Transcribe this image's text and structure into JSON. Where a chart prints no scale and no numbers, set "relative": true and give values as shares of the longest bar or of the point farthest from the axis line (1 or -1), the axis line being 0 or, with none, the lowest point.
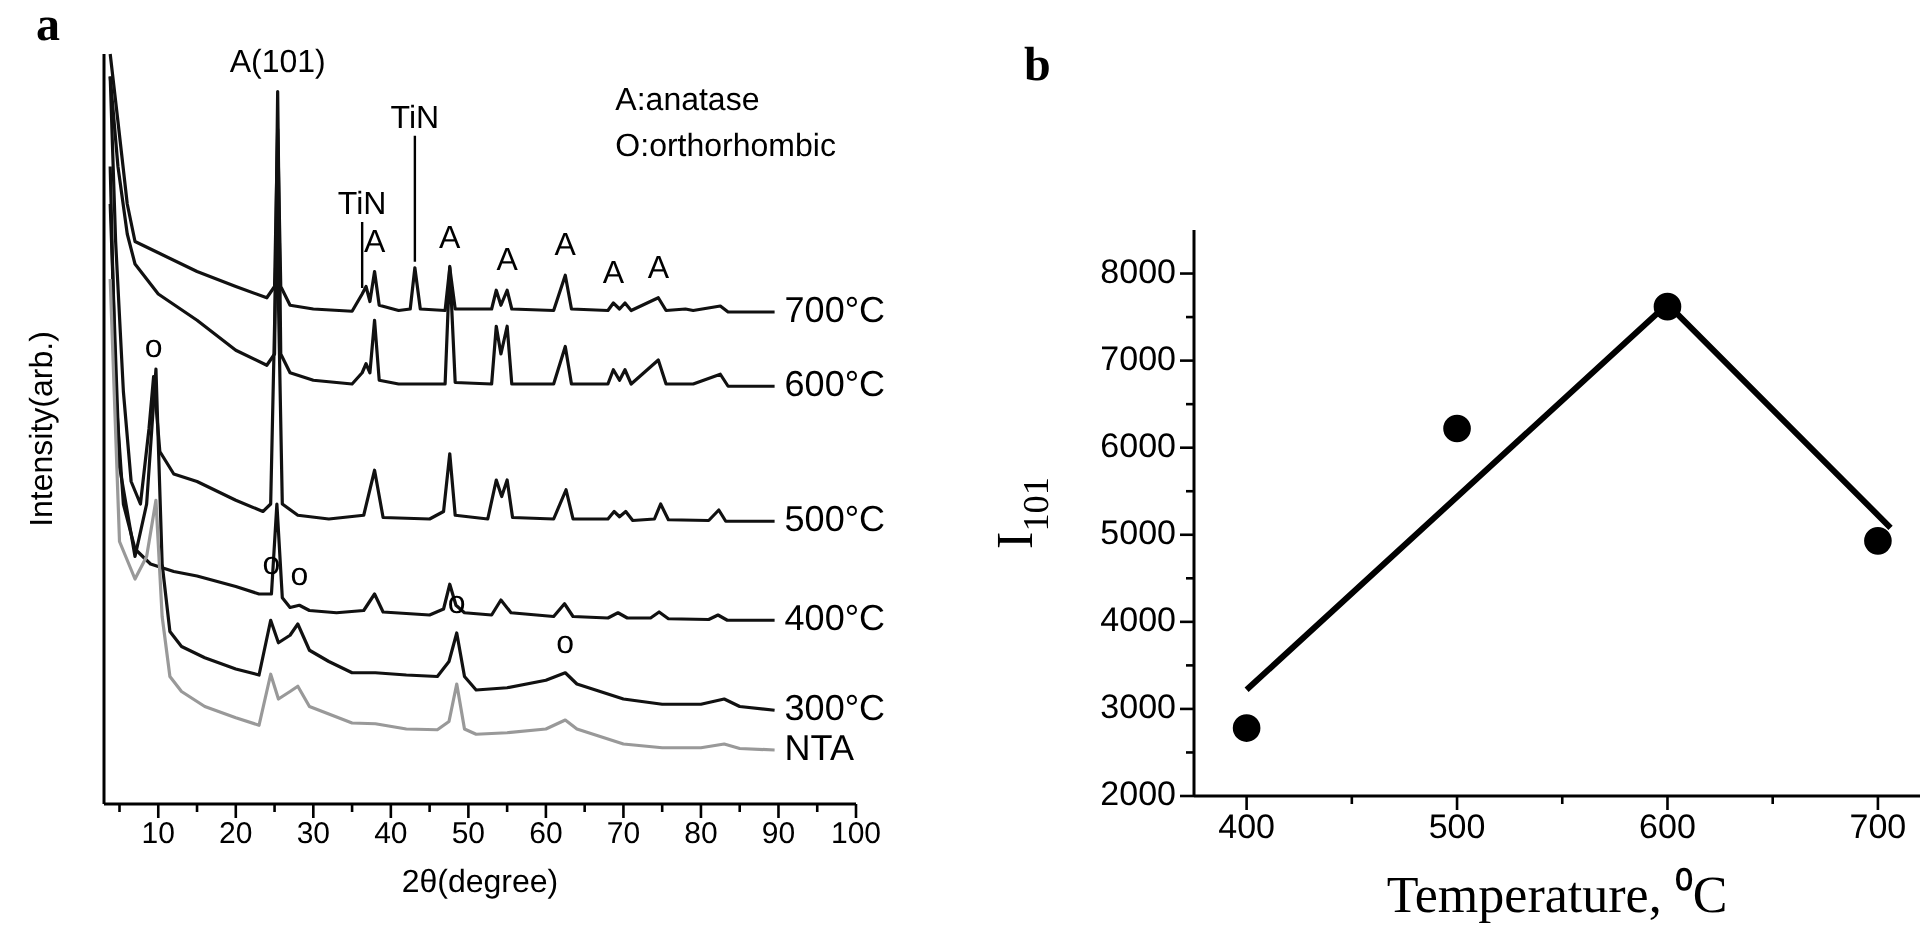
{
  "chart_data": [
    {
      "type": "line",
      "title": "a",
      "xlabel": "2θ(degree)",
      "ylabel": "Intensity(arb.)",
      "relative": true,
      "tick_labels": "x",
      "xlim": [
        3,
        100
      ],
      "xticks": [
        {
          "value": 5,
          "label": null
        },
        10,
        {
          "value": 15,
          "label": null
        },
        20,
        {
          "value": 25,
          "label": null
        },
        30,
        {
          "value": 35,
          "label": null
        },
        40,
        {
          "value": 45,
          "label": null
        },
        50,
        {
          "value": 55,
          "label": null
        },
        60,
        {
          "value": 65,
          "label": null
        },
        70,
        {
          "value": 75,
          "label": null
        },
        80,
        {
          "value": 85,
          "label": null
        },
        90,
        {
          "value": 95,
          "label": null
        },
        100
      ],
      "series": [
        {
          "name": "700°C",
          "color": "#111111",
          "x": [
            3.8,
            4.8,
            6,
            7,
            10,
            15,
            20,
            24,
            25,
            25.4,
            25.8,
            27,
            30,
            35,
            36.3,
            36.8,
            37.3,
            37.9,
            38.5,
            41,
            42.5,
            43.1,
            43.8,
            47,
            47.6,
            48.3,
            53,
            53.6,
            54.2,
            55,
            55.6,
            61,
            62.5,
            63.3,
            68,
            68.7,
            69.5,
            70.2,
            71,
            74.5,
            75.5,
            78,
            79,
            82.5,
            83.5,
            89.5
          ],
          "values": [
            1.0,
            0.91,
            0.8,
            0.75,
            0.735,
            0.71,
            0.69,
            0.675,
            0.69,
            0.9,
            0.69,
            0.665,
            0.66,
            0.657,
            0.68,
            0.69,
            0.67,
            0.71,
            0.665,
            0.658,
            0.66,
            0.715,
            0.66,
            0.658,
            0.715,
            0.66,
            0.66,
            0.685,
            0.665,
            0.685,
            0.66,
            0.658,
            0.705,
            0.66,
            0.658,
            0.668,
            0.66,
            0.668,
            0.658,
            0.675,
            0.658,
            0.66,
            0.658,
            0.664,
            0.656,
            0.656
          ]
        },
        {
          "name": "600°C",
          "color": "#111111",
          "x": [
            3.8,
            4.8,
            6,
            7,
            10,
            15,
            20,
            24,
            25,
            25.4,
            25.8,
            27,
            30,
            35,
            36.3,
            36.8,
            37.3,
            37.9,
            38.5,
            41,
            42.5,
            43.1,
            43.8,
            47,
            47.6,
            48.3,
            53,
            53.6,
            54.2,
            55,
            55.6,
            61,
            62.5,
            63.3,
            68,
            68.7,
            69.5,
            70.2,
            71,
            74.5,
            75.5,
            78,
            79,
            82.5,
            83.5,
            89.5
          ],
          "values": [
            0.97,
            0.85,
            0.76,
            0.72,
            0.68,
            0.645,
            0.605,
            0.585,
            0.6,
            0.95,
            0.6,
            0.575,
            0.565,
            0.56,
            0.575,
            0.587,
            0.575,
            0.645,
            0.565,
            0.56,
            0.56,
            0.56,
            0.56,
            0.56,
            0.717,
            0.562,
            0.56,
            0.637,
            0.6,
            0.637,
            0.56,
            0.56,
            0.61,
            0.56,
            0.56,
            0.579,
            0.565,
            0.579,
            0.56,
            0.592,
            0.56,
            0.56,
            0.56,
            0.573,
            0.557,
            0.557
          ]
        },
        {
          "name": "500°C",
          "color": "#111111",
          "x": [
            3.8,
            4.5,
            5.5,
            6.5,
            7.7,
            8.8,
            9.4,
            10.2,
            12,
            15,
            20,
            23.5,
            24.5,
            25.3,
            26,
            28,
            32,
            36.5,
            37.9,
            39,
            45,
            46.8,
            47.6,
            48.3,
            52.5,
            53.6,
            54.3,
            55,
            55.7,
            61,
            62.6,
            63.5,
            68,
            68.8,
            69.5,
            70.3,
            71.2,
            74,
            74.8,
            75.8,
            81,
            82.3,
            83.2,
            89.5
          ],
          "values": [
            0.97,
            0.75,
            0.55,
            0.43,
            0.4,
            0.5,
            0.57,
            0.47,
            0.44,
            0.43,
            0.405,
            0.39,
            0.4,
            0.78,
            0.4,
            0.385,
            0.38,
            0.385,
            0.445,
            0.382,
            0.38,
            0.39,
            0.467,
            0.385,
            0.38,
            0.432,
            0.41,
            0.432,
            0.382,
            0.38,
            0.419,
            0.38,
            0.38,
            0.39,
            0.383,
            0.39,
            0.378,
            0.38,
            0.4,
            0.379,
            0.378,
            0.392,
            0.377,
            0.377
          ]
        },
        {
          "name": "400°C",
          "color": "#111111",
          "x": [
            3.8,
            4.5,
            5.5,
            7,
            9,
            12,
            15,
            20,
            23,
            24.6,
            25.3,
            26,
            27,
            28.2,
            29.5,
            33,
            36.5,
            37.9,
            39,
            45,
            46.8,
            47.6,
            48.4,
            49.5,
            53,
            54.2,
            55.5,
            61,
            62.4,
            63.5,
            68,
            69.3,
            70.5,
            73.5,
            74.6,
            75.8,
            81,
            82.2,
            83.4,
            89.5
          ],
          "values": [
            0.85,
            0.55,
            0.4,
            0.34,
            0.32,
            0.31,
            0.304,
            0.29,
            0.28,
            0.28,
            0.4,
            0.275,
            0.262,
            0.265,
            0.258,
            0.255,
            0.258,
            0.28,
            0.256,
            0.252,
            0.26,
            0.293,
            0.265,
            0.255,
            0.252,
            0.272,
            0.255,
            0.25,
            0.267,
            0.25,
            0.248,
            0.255,
            0.248,
            0.248,
            0.256,
            0.247,
            0.246,
            0.252,
            0.245,
            0.245
          ]
        },
        {
          "name": "300°C",
          "color": "#111111",
          "x": [
            3.8,
            5,
            7,
            8.5,
            9.7,
            10.5,
            11.5,
            13,
            16,
            20,
            23,
            24.5,
            25.5,
            27,
            28,
            29.5,
            32,
            35,
            38,
            42,
            46,
            47.5,
            48.5,
            49.5,
            51,
            55,
            60,
            62.5,
            64,
            67,
            70,
            75,
            80,
            83,
            85,
            89.5
          ],
          "values": [
            0.8,
            0.45,
            0.33,
            0.4,
            0.58,
            0.32,
            0.23,
            0.21,
            0.195,
            0.18,
            0.172,
            0.245,
            0.215,
            0.225,
            0.24,
            0.205,
            0.19,
            0.175,
            0.175,
            0.172,
            0.17,
            0.19,
            0.228,
            0.17,
            0.152,
            0.155,
            0.165,
            0.175,
            0.16,
            0.15,
            0.14,
            0.133,
            0.133,
            0.14,
            0.13,
            0.125
          ]
        },
        {
          "name": "NTA",
          "color": "#999999",
          "x": [
            3.8,
            5,
            7,
            8.5,
            9.7,
            10.5,
            11.5,
            13,
            16,
            20,
            23,
            24.5,
            25.5,
            27,
            28,
            29.5,
            32,
            35,
            38,
            42,
            46,
            47.5,
            48.5,
            49.5,
            51,
            55,
            60,
            62.5,
            64,
            67,
            70,
            75,
            80,
            83,
            85,
            89.5
          ],
          "values": [
            0.7,
            0.35,
            0.3,
            0.33,
            0.405,
            0.25,
            0.17,
            0.15,
            0.13,
            0.115,
            0.105,
            0.173,
            0.14,
            0.15,
            0.157,
            0.13,
            0.12,
            0.108,
            0.107,
            0.1,
            0.099,
            0.11,
            0.16,
            0.1,
            0.093,
            0.095,
            0.1,
            0.112,
            0.1,
            0.09,
            0.08,
            0.075,
            0.075,
            0.08,
            0.074,
            0.072
          ]
        }
      ],
      "annotations": [
        "A:anatase",
        "O:orthorhombic",
        {
          "text": "A(101)",
          "x": 25.4,
          "y": 0.95
        },
        {
          "text": "A",
          "x": 37.9,
          "y": 0.71
        },
        {
          "text": "A",
          "x": 47.6,
          "y": 0.715
        },
        {
          "text": "A",
          "x": 55,
          "y": 0.685
        },
        {
          "text": "A",
          "x": 62.5,
          "y": 0.705
        },
        {
          "text": "A",
          "x": 68.7,
          "y": 0.668
        },
        {
          "text": "A",
          "x": 74.5,
          "y": 0.675
        },
        {
          "text": "TiN",
          "x": 36.3,
          "y": 0.68
        },
        {
          "text": "TiN",
          "x": 43.1,
          "y": 0.715
        },
        {
          "text": "o",
          "x": 9.4,
          "y": 0.57
        },
        {
          "text": "o",
          "x": 24.6,
          "y": 0.28
        },
        {
          "text": "o",
          "x": 28.2,
          "y": 0.265
        },
        {
          "text": "o",
          "x": 48.5,
          "y": 0.228
        },
        {
          "text": "o",
          "x": 62.5,
          "y": 0.175
        }
      ]
    },
    {
      "type": "scatter",
      "title": "b",
      "xlabel": "Temperature, ⁰C",
      "ylabel": "I$_{101}$",
      "xlim": [
        375,
        720
      ],
      "xticks": [
        400,
        {
          "value": 450,
          "label": null
        },
        500,
        {
          "value": 550,
          "label": null
        },
        600,
        {
          "value": 650,
          "label": null
        },
        700
      ],
      "ylim": [
        2000,
        8500
      ],
      "yticks": [
        2000,
        {
          "value": 2500,
          "label": null
        },
        3000,
        {
          "value": 3500,
          "label": null
        },
        4000,
        {
          "value": 4500,
          "label": null
        },
        5000,
        {
          "value": 5500,
          "label": null
        },
        6000,
        {
          "value": 6500,
          "label": null
        },
        7000,
        {
          "value": 7500,
          "label": null
        },
        8000
      ],
      "series": [
        {
          "color": "#000000",
          "marker": "circle",
          "x": [
            400,
            500,
            600,
            700
          ],
          "values": [
            2780,
            6220,
            7620,
            4930
          ]
        },
        {
          "type": "line",
          "color": "#000000",
          "x": [
            400,
            600,
            706
          ],
          "values": [
            3220,
            7650,
            5080
          ]
        }
      ]
    }
  ]
}
